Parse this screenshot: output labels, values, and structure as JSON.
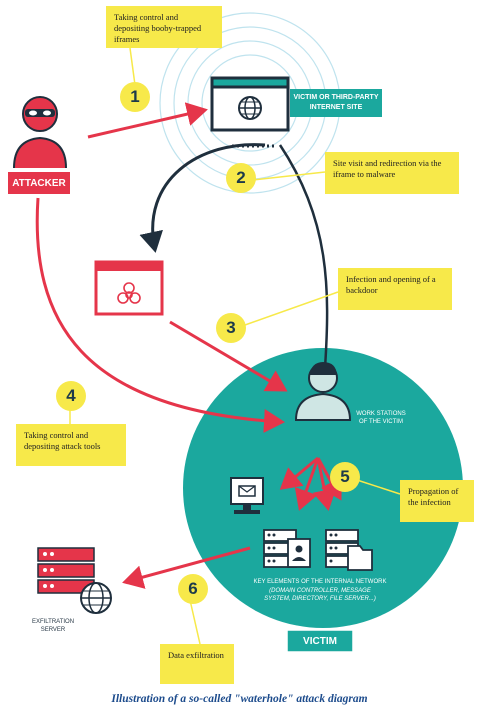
{
  "steps": {
    "s1": {
      "num": "1",
      "text": "Taking control and depositing booby-trapped iframes"
    },
    "s2": {
      "num": "2",
      "text": "Site visit and redirection via the iframe to malware"
    },
    "s3": {
      "num": "3",
      "text": "Infection and opening of a backdoor"
    },
    "s4": {
      "num": "4",
      "text": "Taking control and depositing attack tools"
    },
    "s5": {
      "num": "5",
      "text": "Propagation of the infection"
    },
    "s6": {
      "num": "6",
      "text": "Data exfiltration"
    }
  },
  "labels": {
    "attacker": "ATTACKER",
    "site": "VICTIM OR THIRD-PARTY INTERNET SITE",
    "workstations": "WORK STATIONS OF THE VICTIM",
    "network_title": "KEY ELEMENTS OF THE INTERNAL NETWORK",
    "network_detail": "(DOMAIN CONTROLLER, MESSAGE SYSTEM, DIRECTORY, FILE SERVER...)",
    "exfil": "EXFILTRATION SERVER",
    "victim": "VICTIM"
  },
  "caption": "Illustration of a so-called \"waterhole\" attack diagram",
  "colors": {
    "red": "#e5354a",
    "teal": "#1ba89e",
    "dark": "#1f2f3d",
    "yellow": "#f7e94a",
    "caption": "#1c4b8c"
  },
  "icons": [
    "attacker-icon",
    "globe-icon",
    "biohazard-icon",
    "user-icon",
    "mail-icon",
    "server-icon",
    "folder-icon"
  ]
}
